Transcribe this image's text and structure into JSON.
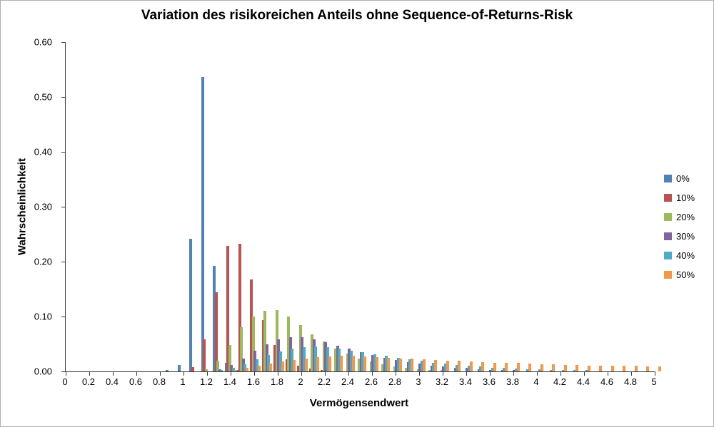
{
  "chart": {
    "title": "Variation des risikoreichen Anteils ohne Sequence-of-Returns-Risk",
    "y_axis_title": "Wahrscheinlichkeit",
    "x_axis_title": "Vermögensendwert"
  },
  "chart_data": {
    "type": "bar",
    "title": "Variation des risikoreichen Anteils ohne Sequence-of-Returns-Risk",
    "xlabel": "Vermögensendwert",
    "ylabel": "Wahrscheinlichkeit",
    "xlim": [
      0,
      5
    ],
    "ylim": [
      0,
      0.6
    ],
    "grid": false,
    "legend_position": "right",
    "y_tick_labels": [
      "0.00",
      "0.10",
      "0.20",
      "0.30",
      "0.40",
      "0.50",
      "0.60"
    ],
    "x_tick_labels": [
      "0",
      "0.2",
      "0.4",
      "0.6",
      "0.8",
      "1",
      "1.2",
      "1.4",
      "1.6",
      "1.8",
      "2",
      "2.2",
      "2.4",
      "2.6",
      "2.8",
      "3",
      "3.2",
      "3.4",
      "3.6",
      "3.8",
      "4",
      "4.2",
      "4.4",
      "4.6",
      "4.8",
      "5"
    ],
    "bins": [
      0.9,
      1.0,
      1.1,
      1.2,
      1.3,
      1.4,
      1.5,
      1.6,
      1.7,
      1.8,
      1.9,
      2.0,
      2.1,
      2.2,
      2.3,
      2.4,
      2.5,
      2.6,
      2.7,
      2.8,
      2.9,
      3.0,
      3.1,
      3.2,
      3.3,
      3.4,
      3.5,
      3.6,
      3.7,
      3.8,
      3.9,
      4.0,
      4.1,
      4.2,
      4.3,
      4.4,
      4.5,
      4.6,
      4.7,
      4.8,
      4.9,
      5.0
    ],
    "series": [
      {
        "name": "0%",
        "color": "#4F81BD",
        "values": [
          0.002,
          0.012,
          0.241,
          0.536,
          0.192,
          0.015,
          0.002,
          0,
          0,
          0,
          0,
          0,
          0,
          0,
          0,
          0,
          0,
          0,
          0,
          0,
          0,
          0,
          0,
          0,
          0,
          0,
          0,
          0,
          0,
          0,
          0,
          0,
          0,
          0,
          0,
          0,
          0,
          0,
          0,
          0,
          0,
          0
        ]
      },
      {
        "name": "10%",
        "color": "#C0504D",
        "values": [
          0,
          0,
          0.008,
          0.058,
          0.144,
          0.228,
          0.232,
          0.168,
          0.093,
          0.048,
          0.022,
          0.01,
          0.005,
          0.002,
          0,
          0,
          0,
          0,
          0,
          0,
          0,
          0,
          0,
          0,
          0,
          0,
          0,
          0,
          0,
          0,
          0,
          0,
          0,
          0,
          0,
          0,
          0,
          0,
          0,
          0,
          0,
          0
        ]
      },
      {
        "name": "20%",
        "color": "#9BBB59",
        "values": [
          0,
          0,
          0,
          0.004,
          0.02,
          0.048,
          0.08,
          0.1,
          0.11,
          0.112,
          0.1,
          0.085,
          0.068,
          0.054,
          0.042,
          0.032,
          0.024,
          0.018,
          0.013,
          0.009,
          0.006,
          0.004,
          0.003,
          0.002,
          0,
          0,
          0,
          0,
          0,
          0,
          0,
          0,
          0,
          0,
          0,
          0,
          0,
          0,
          0,
          0,
          0,
          0
        ]
      },
      {
        "name": "30%",
        "color": "#8064A2",
        "values": [
          0,
          0,
          0,
          0,
          0.004,
          0.012,
          0.024,
          0.038,
          0.05,
          0.058,
          0.062,
          0.062,
          0.058,
          0.053,
          0.047,
          0.041,
          0.035,
          0.03,
          0.025,
          0.021,
          0.017,
          0.014,
          0.011,
          0.009,
          0.007,
          0.006,
          0.004,
          0.003,
          0.002,
          0.002,
          0,
          0,
          0,
          0,
          0,
          0,
          0,
          0,
          0,
          0,
          0,
          0
        ]
      },
      {
        "name": "40%",
        "color": "#4BACC6",
        "values": [
          0,
          0,
          0,
          0,
          0.002,
          0.006,
          0.013,
          0.022,
          0.03,
          0.037,
          0.042,
          0.044,
          0.045,
          0.044,
          0.041,
          0.038,
          0.035,
          0.031,
          0.028,
          0.025,
          0.022,
          0.019,
          0.016,
          0.014,
          0.012,
          0.01,
          0.009,
          0.007,
          0.006,
          0.005,
          0.004,
          0.004,
          0.003,
          0.003,
          0.002,
          0.002,
          0,
          0,
          0,
          0,
          0,
          0
        ]
      },
      {
        "name": "50%",
        "color": "#F79646",
        "values": [
          0,
          0,
          0,
          0,
          0,
          0.003,
          0.006,
          0.01,
          0.014,
          0.018,
          0.021,
          0.024,
          0.026,
          0.027,
          0.028,
          0.028,
          0.027,
          0.026,
          0.025,
          0.024,
          0.023,
          0.022,
          0.021,
          0.02,
          0.019,
          0.018,
          0.017,
          0.016,
          0.015,
          0.015,
          0.014,
          0.013,
          0.013,
          0.012,
          0.012,
          0.011,
          0.011,
          0.01,
          0.01,
          0.01,
          0.009,
          0.009
        ]
      }
    ]
  }
}
